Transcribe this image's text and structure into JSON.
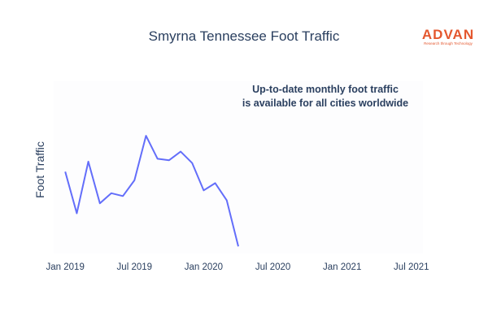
{
  "chart_data": {
    "type": "line",
    "title": "Smyrna Tennessee Foot Traffic",
    "ylabel": "Foot Traffic",
    "xlabel": "",
    "annotation": [
      "Up-to-date monthly foot traffic",
      "is available for all cities worldwide"
    ],
    "x_ticks": [
      "Jan 2019",
      "Jul 2019",
      "Jan 2020",
      "Jul 2020",
      "Jan 2021",
      "Jul 2021"
    ],
    "x_range": [
      "2018-12-01",
      "2021-08-01"
    ],
    "series": [
      {
        "color": "#636efa",
        "x": [
          "2019-01",
          "2019-02",
          "2019-03",
          "2019-04",
          "2019-05",
          "2019-06",
          "2019-07",
          "2019-08",
          "2019-09",
          "2019-10",
          "2019-11",
          "2019-12",
          "2020-01",
          "2020-02",
          "2020-03",
          "2020-04"
        ],
        "values": [
          57,
          28,
          64,
          35,
          42,
          40,
          51,
          82,
          66,
          65,
          71,
          63,
          44,
          49,
          37,
          5
        ]
      }
    ],
    "ylim": [
      0,
      120
    ],
    "grid": false,
    "legend": "none"
  },
  "logo": {
    "word": "ADVAN",
    "tagline": "Research through Technology",
    "color": "#e4572e"
  }
}
